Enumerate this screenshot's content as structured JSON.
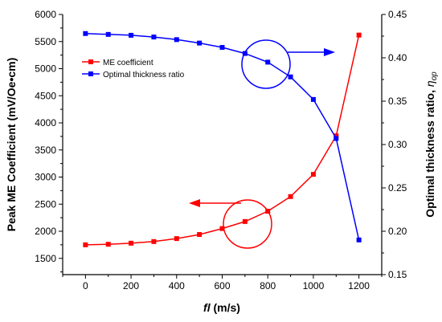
{
  "chart_data": {
    "type": "line",
    "xlabel_main": "fl",
    "xlabel_unit": " (m/s)",
    "ylabel_left": "Peak ME Coefficient (mV/Oe•cm)",
    "ylabel_right_main": "Optimal thickness ratio, ",
    "ylabel_right_symbol": "η",
    "ylabel_right_sub": "op",
    "xlim": [
      -100,
      1300
    ],
    "ylim_left": [
      1200,
      6000
    ],
    "ylim_right": [
      0.15,
      0.45
    ],
    "x_ticks": [
      0,
      200,
      400,
      600,
      800,
      1000,
      1200
    ],
    "x_tick_labels": [
      "0",
      "200",
      "400",
      "600",
      "800",
      "1000",
      "1200"
    ],
    "y_left_ticks": [
      1500,
      2000,
      2500,
      3000,
      3500,
      4000,
      4500,
      5000,
      5500,
      6000
    ],
    "y_left_tick_labels": [
      "1500",
      "2000",
      "2500",
      "3000",
      "3500",
      "4000",
      "4500",
      "5000",
      "5500",
      "6000"
    ],
    "y_right_ticks": [
      0.15,
      0.2,
      0.25,
      0.3,
      0.35,
      0.4,
      0.45
    ],
    "y_right_tick_labels": [
      "0.15",
      "0.20",
      "0.25",
      "0.30",
      "0.35",
      "0.40",
      "0.45"
    ],
    "legend_position": "upper-left",
    "series": [
      {
        "name": "ME coefficient",
        "axis": "left",
        "color": "#ff0000",
        "x": [
          0,
          100,
          200,
          300,
          400,
          500,
          600,
          700,
          800,
          900,
          1000,
          1100,
          1200
        ],
        "y": [
          1750,
          1760,
          1780,
          1810,
          1865,
          1940,
          2050,
          2180,
          2370,
          2640,
          3050,
          3760,
          5620
        ]
      },
      {
        "name": "Optimal thickness ratio",
        "axis": "right",
        "color": "#0000ff",
        "x": [
          0,
          100,
          200,
          300,
          400,
          500,
          600,
          700,
          800,
          900,
          1000,
          1100,
          1200
        ],
        "y": [
          0.428,
          0.427,
          0.426,
          0.424,
          0.421,
          0.417,
          0.412,
          0.405,
          0.395,
          0.378,
          0.352,
          0.307,
          0.19
        ]
      }
    ]
  }
}
